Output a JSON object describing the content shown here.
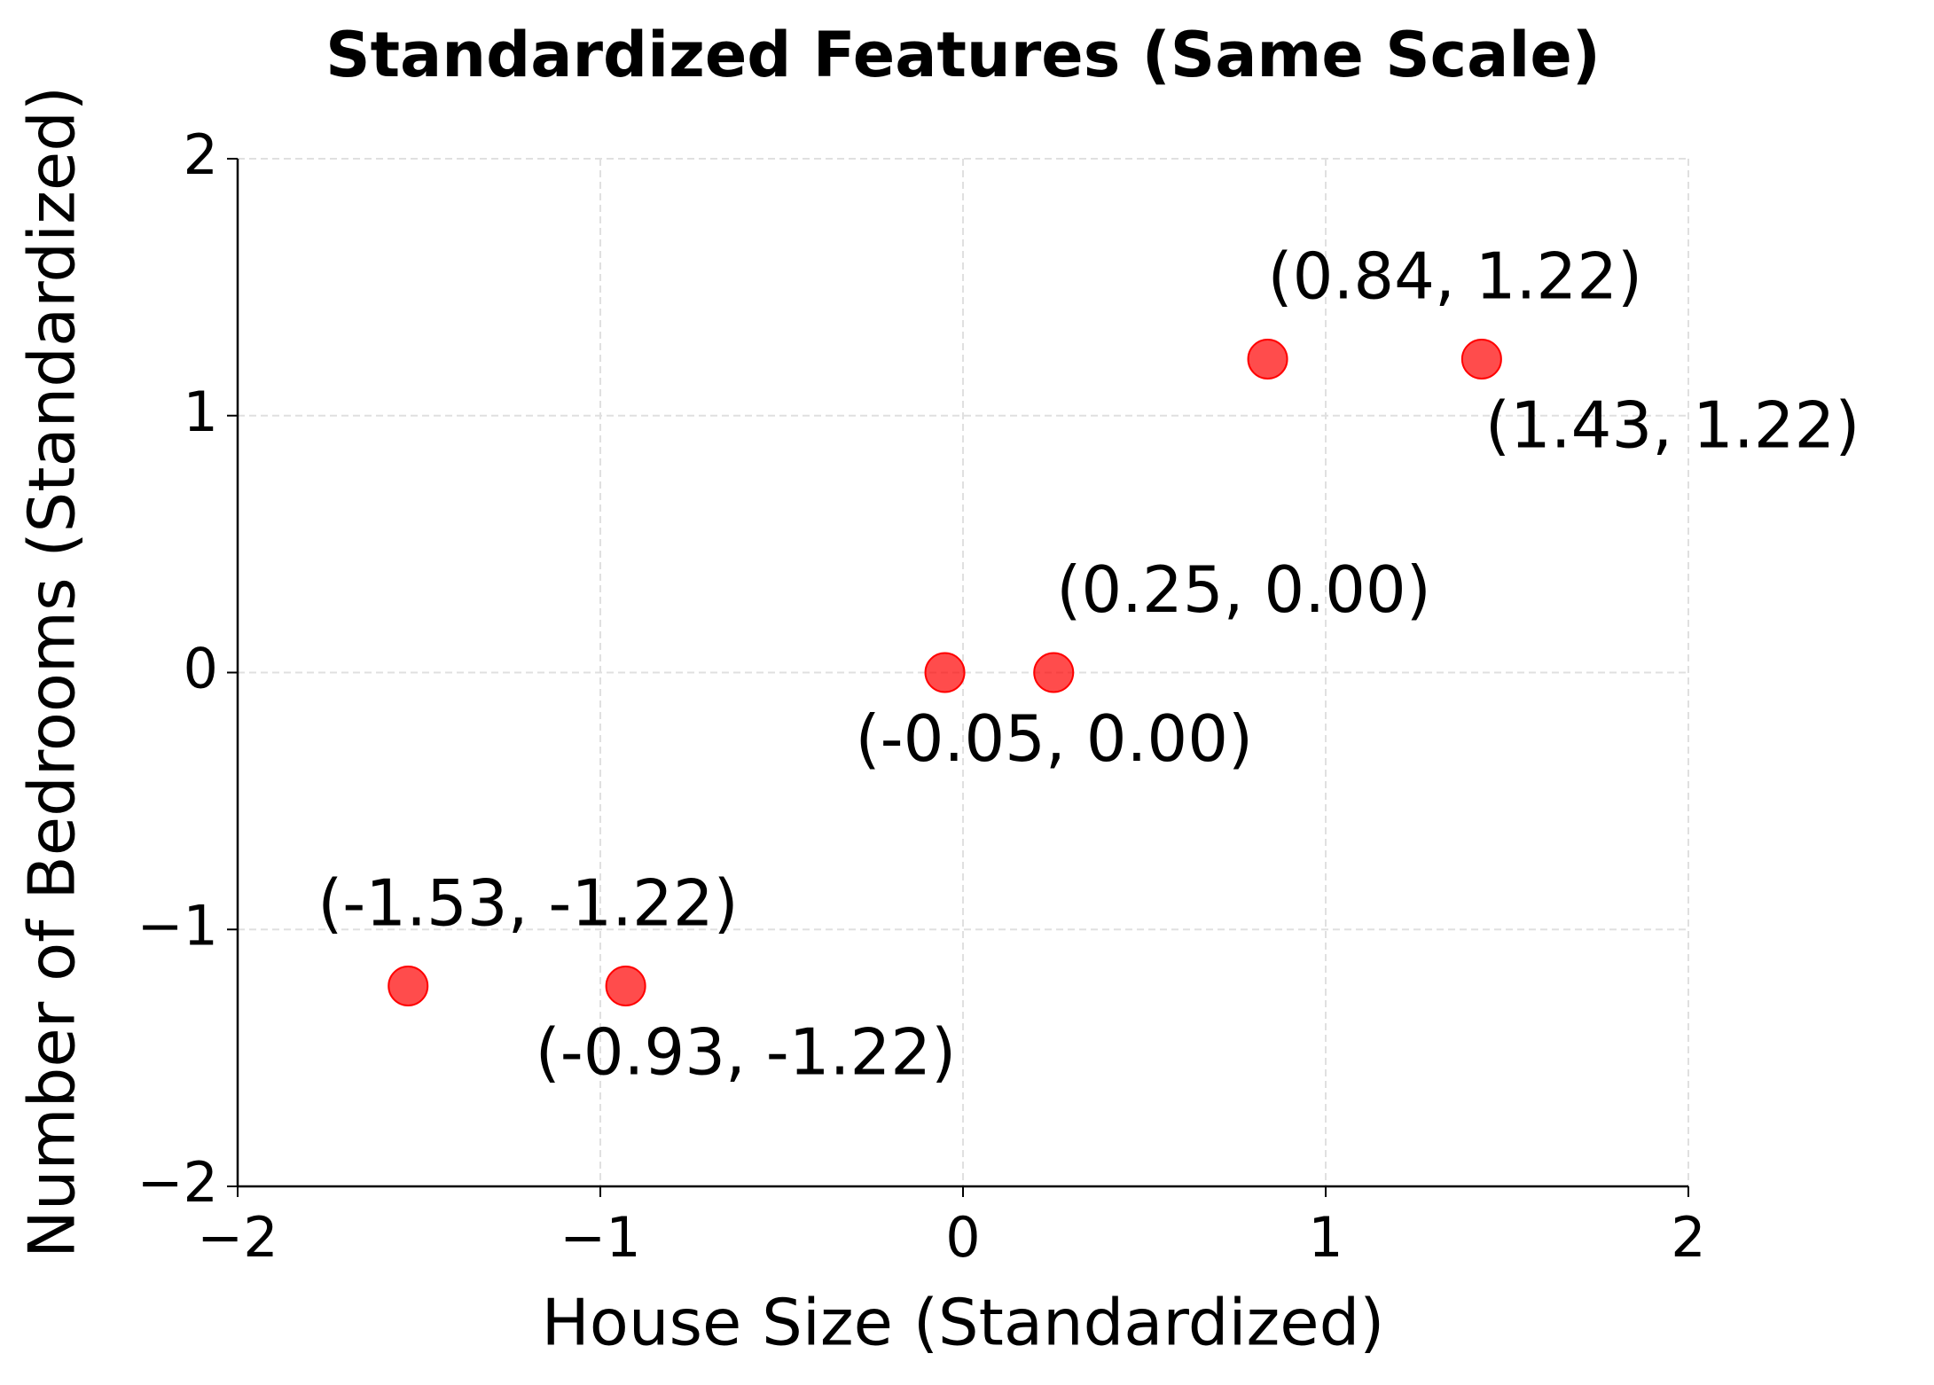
{
  "chart_data": {
    "type": "scatter",
    "title": "Standardized Features (Same Scale)",
    "x_label": "House Size (Standardized)",
    "y_label": "Number of Bedrooms (Standardized)",
    "series": [
      {
        "color": "#ff0000",
        "x": [
          -1.53,
          -0.93,
          -0.05,
          0.25,
          0.84,
          1.43
        ],
        "values": [
          -1.22,
          -1.22,
          0,
          0,
          1.22,
          1.22
        ],
        "value_labels": [
          "(-1.53, -1.22)",
          "(-0.93, -1.22)",
          "(-0.05, 0.00)",
          "(0.25, 0.00)",
          "(0.84, 1.22)",
          "(1.43, 1.22)"
        ]
      }
    ],
    "xlim": [
      -2,
      2
    ],
    "ylim": [
      -2,
      2
    ],
    "xticks": [
      {
        "value": -2,
        "label": "−2"
      },
      {
        "value": -1,
        "label": "−1"
      },
      0,
      1,
      2
    ],
    "yticks": [
      {
        "value": -2,
        "label": "−2"
      },
      {
        "value": -1,
        "label": "−1"
      },
      0,
      1,
      2
    ],
    "grid": true
  }
}
